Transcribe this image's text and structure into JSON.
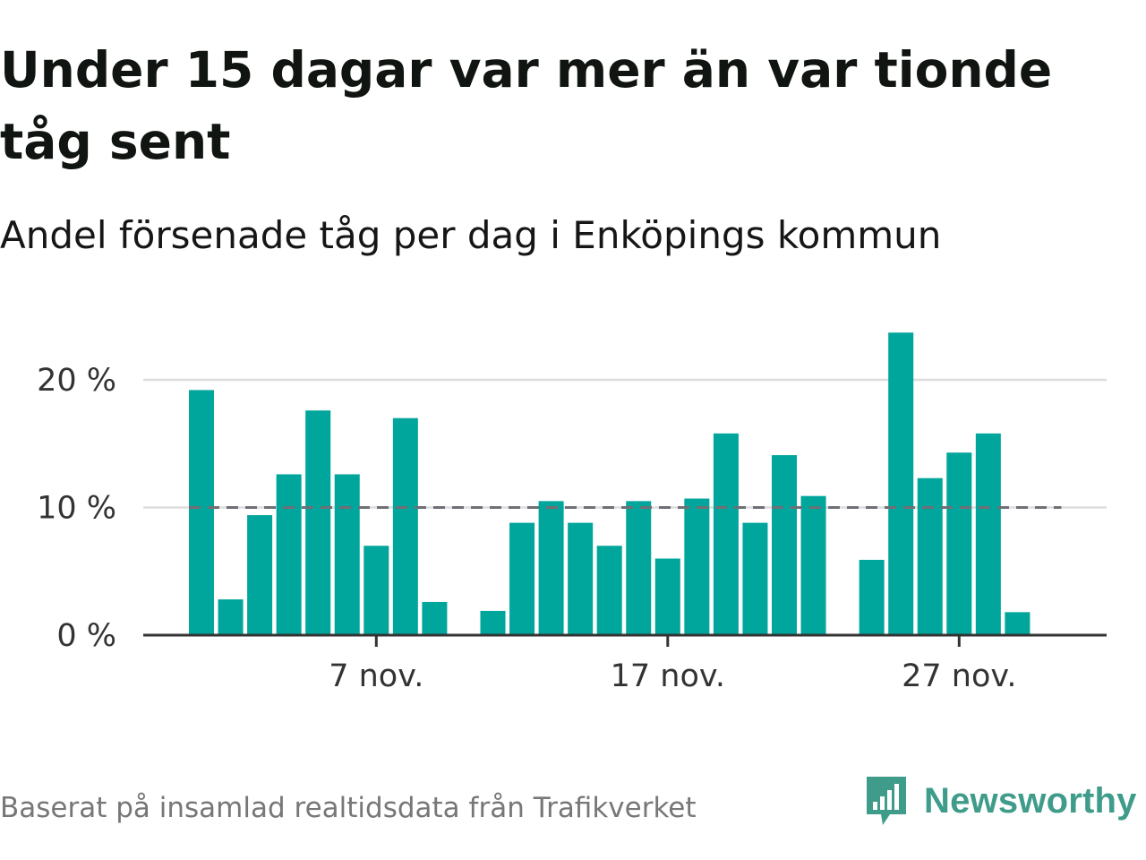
{
  "title": "Under 15 dagar var mer än var tionde tåg sent",
  "subtitle": "Andel försenade tåg per dag i Enköpings kommun",
  "footer": {
    "source": "Baserat på insamlad realtidsdata från Trafikverket",
    "brand": "Newsworthy"
  },
  "colors": {
    "bar": "#00a59b",
    "reference_line": "#6f6f76",
    "gridline": "#dddddd",
    "axis": "#333333",
    "brand": "#3f9c8b"
  },
  "icons": {
    "brand_logo": "bar-chart-speech-bubble-icon"
  },
  "chart_data": {
    "type": "bar",
    "x": [
      "2023-11-01",
      "2023-11-02",
      "2023-11-03",
      "2023-11-04",
      "2023-11-05",
      "2023-11-06",
      "2023-11-07",
      "2023-11-08",
      "2023-11-09",
      "2023-11-10",
      "2023-11-11",
      "2023-11-12",
      "2023-11-13",
      "2023-11-14",
      "2023-11-15",
      "2023-11-16",
      "2023-11-17",
      "2023-11-18",
      "2023-11-19",
      "2023-11-20",
      "2023-11-21",
      "2023-11-22",
      "2023-11-23",
      "2023-11-24",
      "2023-11-25",
      "2023-11-26",
      "2023-11-27",
      "2023-11-28",
      "2023-11-29",
      "2023-11-30"
    ],
    "values": [
      19.2,
      2.8,
      9.4,
      12.6,
      17.6,
      12.6,
      7.0,
      17.0,
      2.6,
      null,
      1.9,
      8.8,
      10.5,
      8.8,
      7.0,
      10.5,
      6.0,
      10.7,
      15.8,
      8.8,
      14.1,
      10.9,
      null,
      5.9,
      23.7,
      12.3,
      14.3,
      15.8,
      1.8,
      null
    ],
    "ylim": [
      0,
      24.5
    ],
    "yticks": [
      0,
      10,
      20
    ],
    "ytick_labels": [
      "0 %",
      "10 %",
      "20 %"
    ],
    "xticks": [
      "2023-11-07",
      "2023-11-17",
      "2023-11-27"
    ],
    "xtick_labels": [
      "7 nov.",
      "17 nov.",
      "27 nov."
    ],
    "reference_line": 10,
    "grid": true,
    "legend": false,
    "xlabel": "",
    "ylabel": ""
  }
}
